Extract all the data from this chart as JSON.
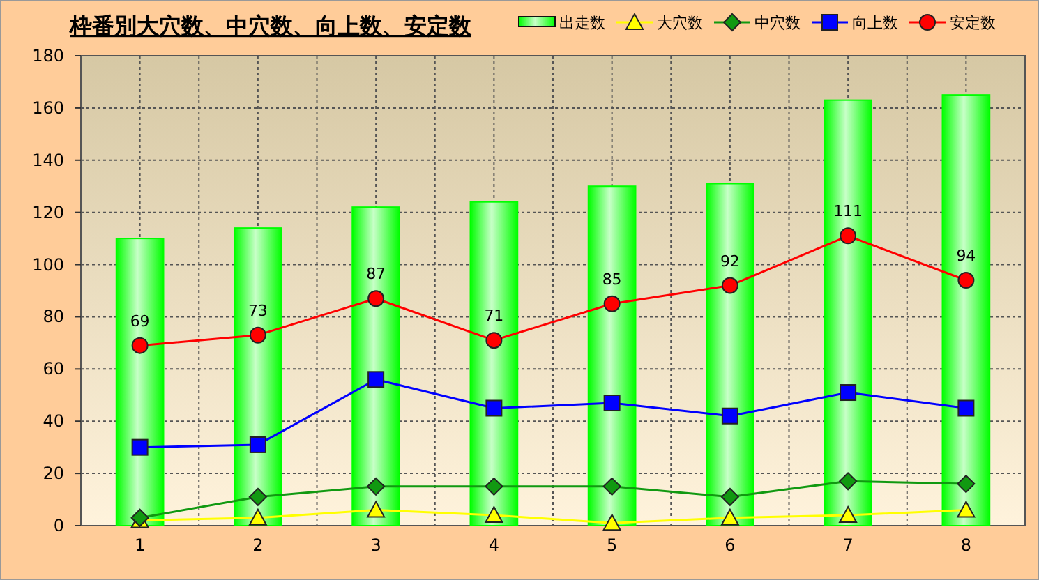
{
  "chart_data": {
    "type": "bar",
    "title": "枠番別大穴数、中穴数、向上数、安定数",
    "categories": [
      "1",
      "2",
      "3",
      "4",
      "5",
      "6",
      "7",
      "8"
    ],
    "series": [
      {
        "name": "出走数",
        "color": "#00ff00",
        "values": [
          110,
          114,
          122,
          124,
          130,
          131,
          163,
          165
        ]
      },
      {
        "name": "大穴数",
        "type": "line",
        "marker": "triangle",
        "color": "#ffff00",
        "values": [
          2,
          3,
          6,
          4,
          1,
          3,
          4,
          6
        ]
      },
      {
        "name": "中穴数",
        "type": "line",
        "marker": "diamond",
        "color": "#119911",
        "values": [
          3,
          11,
          15,
          15,
          15,
          11,
          17,
          16
        ]
      },
      {
        "name": "向上数",
        "type": "line",
        "marker": "square",
        "color": "#0000ff",
        "values": [
          30,
          31,
          56,
          45,
          47,
          42,
          51,
          45
        ]
      },
      {
        "name": "安定数",
        "type": "line",
        "marker": "circle",
        "color": "#ff0000",
        "values": [
          69,
          73,
          87,
          71,
          85,
          92,
          111,
          94
        ],
        "value_labels": [
          "69",
          "73",
          "87",
          "71",
          "85",
          "92",
          "111",
          "94"
        ]
      }
    ],
    "ylim": [
      0,
      180
    ],
    "yticks": [
      0,
      20,
      40,
      60,
      80,
      100,
      120,
      140,
      160,
      180
    ],
    "grid": true,
    "legend": "top right"
  }
}
